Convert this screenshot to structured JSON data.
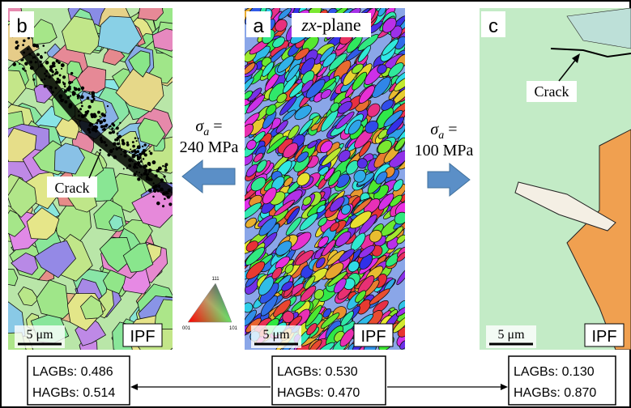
{
  "panels": [
    {
      "letter": "b",
      "annotation": "Crack",
      "scale_bar": "5 μm",
      "map_label": "IPF",
      "stats": [
        "LAGBs: 0.486",
        "HAGBs: 0.514"
      ]
    },
    {
      "letter": "a",
      "plane_italic": "zx",
      "plane_rest": "-plane",
      "scale_bar": "5 μm",
      "map_label": "IPF",
      "stats": [
        "LAGBs: 0.530",
        "HAGBs: 0.470"
      ]
    },
    {
      "letter": "c",
      "annotation": "Crack",
      "scale_bar": "5 μm",
      "map_label": "IPF",
      "stats": [
        "LAGBs: 0.130",
        "HAGBs: 0.870"
      ]
    }
  ],
  "stress": [
    {
      "symbol": "σ",
      "subscript": "a",
      "equals": " =",
      "value": "240 MPa"
    },
    {
      "symbol": "σ",
      "subscript": "a",
      "equals": " =",
      "value": "100 MPa"
    }
  ],
  "ipf_key": {
    "top": "111",
    "left": "001",
    "right": "101"
  }
}
